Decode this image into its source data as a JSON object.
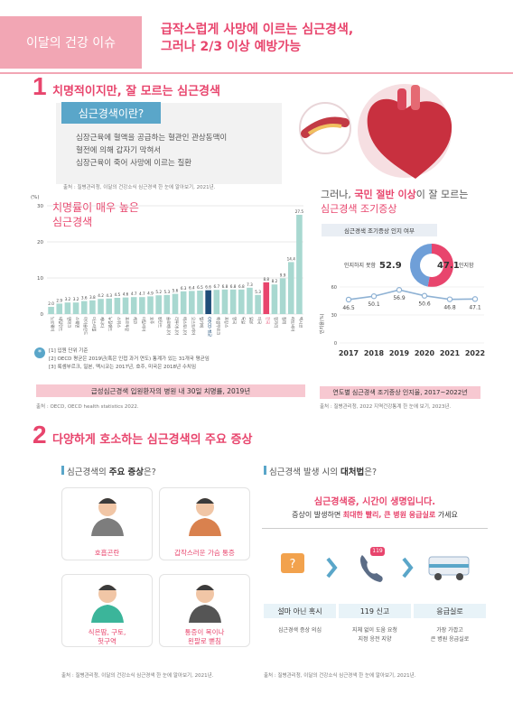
{
  "header": {
    "tag": "이달의 건강 이슈",
    "title_line1": "급작스럽게 사망에 이르는 심근경색,",
    "title_line2": "그러나 2/3 이상 예방가능"
  },
  "section1": {
    "number": "1",
    "title": "치명적이지만, 잘 모르는 심근경색",
    "what_tag": "심근경색이란?",
    "what_lines": [
      "심장근육에 혈액을 공급하는 혈관인 관상동맥이",
      "혈전에 의해 갑자기 막혀서",
      "심장근육이 죽어 사망에 이르는 질환"
    ],
    "what_source": "출처 : 질병관리청, 이달의 건강소식 심근경색 한 눈에 알아보기, 2021년."
  },
  "chart_left": {
    "title_line1": "치명률이 매우 높은",
    "title_line2": "심근경색",
    "notes": [
      "[1] 입원 단위 기준",
      "[2] OECD 평균은 2019년(혹은 인접 과거 연도) 통계가 있는 31개국 평균임",
      "[3] 룩셈부르크, 일본, 멕시코는 2017년, 호주, 미국은 2018년 수치임"
    ],
    "caption": "급성심근경색 입원환자의 병원 내 30일 치명률, 2019년",
    "source": "출처 : OECD, OECD health statistics 2022."
  },
  "chart_right": {
    "title_pre": "그러나, ",
    "title_em": "국민 절반 이상",
    "title_mid": "이 잘 모르는",
    "title_line2": "심근경색 조기증상",
    "aware_tag": "심근경색 조기증상 인지 여부",
    "donut_unknown_label": "인지하지 못함",
    "donut_known_label": "인지함",
    "caption": "연도별 심근경색 조기증상 인지율, 2017~2022년",
    "source": "출처 : 질병관리청, 2022 지역건강통계 한 눈에 보기, 2023년."
  },
  "section2": {
    "number": "2",
    "title": "다양하게 호소하는 심근경색의 주요 증상",
    "left_heading_pre": "심근경색의 ",
    "left_heading_em": "주요 증상",
    "left_heading_post": "은?",
    "symptoms": [
      "호흡곤란",
      "갑작스러운 가슴 통증",
      "식은땀, 구토,",
      "헛구역",
      "통증이 목이나",
      "왼팔로 뻗침"
    ],
    "left_source": "출처 : 질병관리청, 이달의 건강소식 심근경색 한 눈에 알아보기, 2021년.",
    "right_heading_pre": "심근경색 발생 시의 ",
    "right_heading_em": "대처법",
    "right_heading_post": "은?",
    "action_title": "심근경색증, 시간이 생명입니다.",
    "action_sub_pre": "증상이 발생하면 ",
    "action_sub_em": "최대한 빨리, 큰 병원 응급실로",
    "action_sub_post": " 가세요",
    "badge_119": "119",
    "steps": [
      {
        "title": "설마 아닌 혹시",
        "desc1": "심근경색 증상 의심",
        "desc2": ""
      },
      {
        "title": "119 신고",
        "desc1": "지체 없이 도움 요청",
        "desc2": "지정 응전 지양"
      },
      {
        "title": "응급실로",
        "desc1": "가장 가깝고",
        "desc2": "큰 병원 응급실로"
      }
    ],
    "right_source": "출처 : 질병관리청, 이달의 건강소식 심근경색 한 눈에 알아보기, 2021년."
  },
  "chart_data": [
    {
      "type": "bar",
      "ylabel": "(%)",
      "ylim": [
        0,
        30
      ],
      "yticks": [
        0,
        10,
        20,
        30
      ],
      "categories": [
        "노르웨이",
        "네덜란드",
        "덴마크",
        "스웨덴",
        "아이슬란드",
        "이스라엘",
        "캐나다",
        "뉴질랜드",
        "스위스",
        "포르투갈",
        "체코",
        "이탈리아",
        "호주",
        "핀란드",
        "슬로베니아",
        "리투아니아",
        "에스토니아",
        "오스트리아",
        "벨기에",
        "OECD 평균",
        "룩셈부르크",
        "프랑스",
        "영국",
        "독일",
        "일본",
        "미국",
        "한국",
        "헝가리",
        "칠레",
        "라트비아",
        "멕시코"
      ],
      "values": [
        2.0,
        2.9,
        3.2,
        3.2,
        3.6,
        3.8,
        4.2,
        4.3,
        4.5,
        4.6,
        4.7,
        4.7,
        4.9,
        5.2,
        5.3,
        5.6,
        6.3,
        6.4,
        6.5,
        6.6,
        6.7,
        6.8,
        6.8,
        6.8,
        7.3,
        5.3,
        8.8,
        8.2,
        9.9,
        14.4,
        27.5
      ],
      "highlight": {
        "OECD 평균": "#1f4e79",
        "한국": "#e8456d"
      },
      "bar_color": "#a8d8d0"
    },
    {
      "type": "pie",
      "labels": [
        "인지하지 못함",
        "인지함"
      ],
      "values": [
        52.9,
        47.1
      ],
      "colors": [
        "#e8456d",
        "#6f9fd8"
      ]
    },
    {
      "type": "line",
      "x": [
        "2017",
        "2018",
        "2019",
        "2020",
        "2021",
        "2022"
      ],
      "values": [
        46.5,
        50.1,
        56.9,
        50.6,
        46.8,
        47.1
      ],
      "ylabel": "인지율(%)",
      "ylim": [
        0,
        60
      ],
      "yticks": [
        0,
        30,
        60
      ],
      "color": "#8fb2d4"
    }
  ],
  "colors": {
    "accent": "#e8456d",
    "teal": "#5aa6c9",
    "pink_soft": "#f7c8d1"
  }
}
